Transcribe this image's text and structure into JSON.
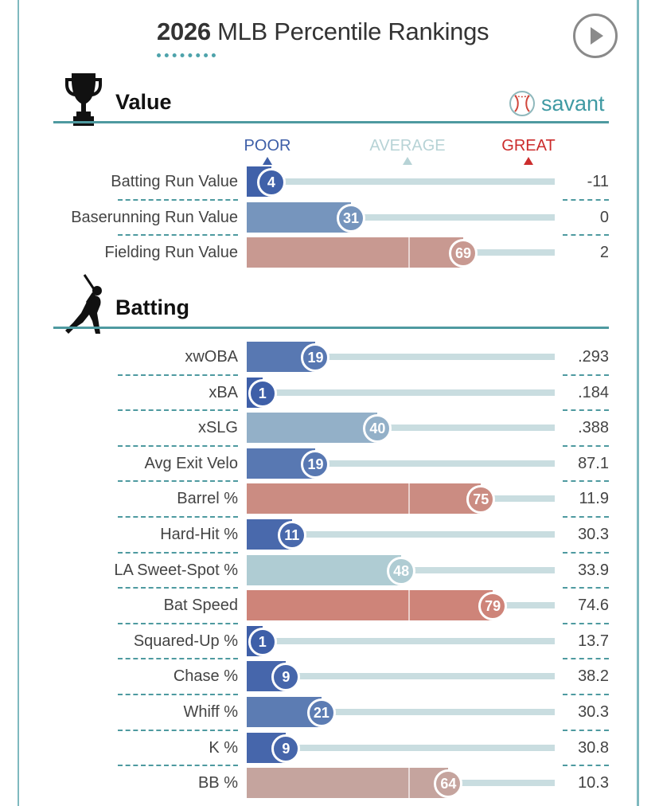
{
  "header": {
    "title_year": "2026",
    "title_rest": "MLB Percentile Rankings"
  },
  "brand": {
    "name": "savant",
    "accent": "#3f9aa3"
  },
  "icons": {
    "play": "play-icon",
    "value": "trophy-icon",
    "batting": "batter-icon",
    "brand": "baseball-icon"
  },
  "legend": {
    "poor": "POOR",
    "average": "AVERAGE",
    "great": "GREAT",
    "colors": {
      "poor": "#3e5fa8",
      "average": "#b7d3d6",
      "great": "#cc2d2d"
    }
  },
  "sections": [
    {
      "title": "Value"
    },
    {
      "title": "Batting"
    }
  ],
  "chart_data": [
    {
      "type": "bar",
      "section": "Value",
      "categories": [
        "Batting Run Value",
        "Baserunning Run Value",
        "Fielding Run Value"
      ],
      "values": [
        4,
        31,
        69
      ],
      "stat_values": [
        "-11",
        "0",
        "2"
      ],
      "xlim": [
        0,
        100
      ]
    },
    {
      "type": "bar",
      "section": "Batting",
      "categories": [
        "xwOBA",
        "xBA",
        "xSLG",
        "Avg Exit Velo",
        "Barrel %",
        "Hard-Hit %",
        "LA Sweet-Spot %",
        "Bat Speed",
        "Squared-Up %",
        "Chase %",
        "Whiff %",
        "K %",
        "BB %"
      ],
      "values": [
        19,
        1,
        40,
        19,
        75,
        11,
        48,
        79,
        1,
        9,
        21,
        9,
        64
      ],
      "stat_values": [
        ".293",
        ".184",
        ".388",
        "87.1",
        "11.9",
        "30.3",
        "33.9",
        "74.6",
        "13.7",
        "38.2",
        "30.3",
        "30.8",
        "10.3"
      ],
      "xlim": [
        0,
        100
      ]
    }
  ]
}
